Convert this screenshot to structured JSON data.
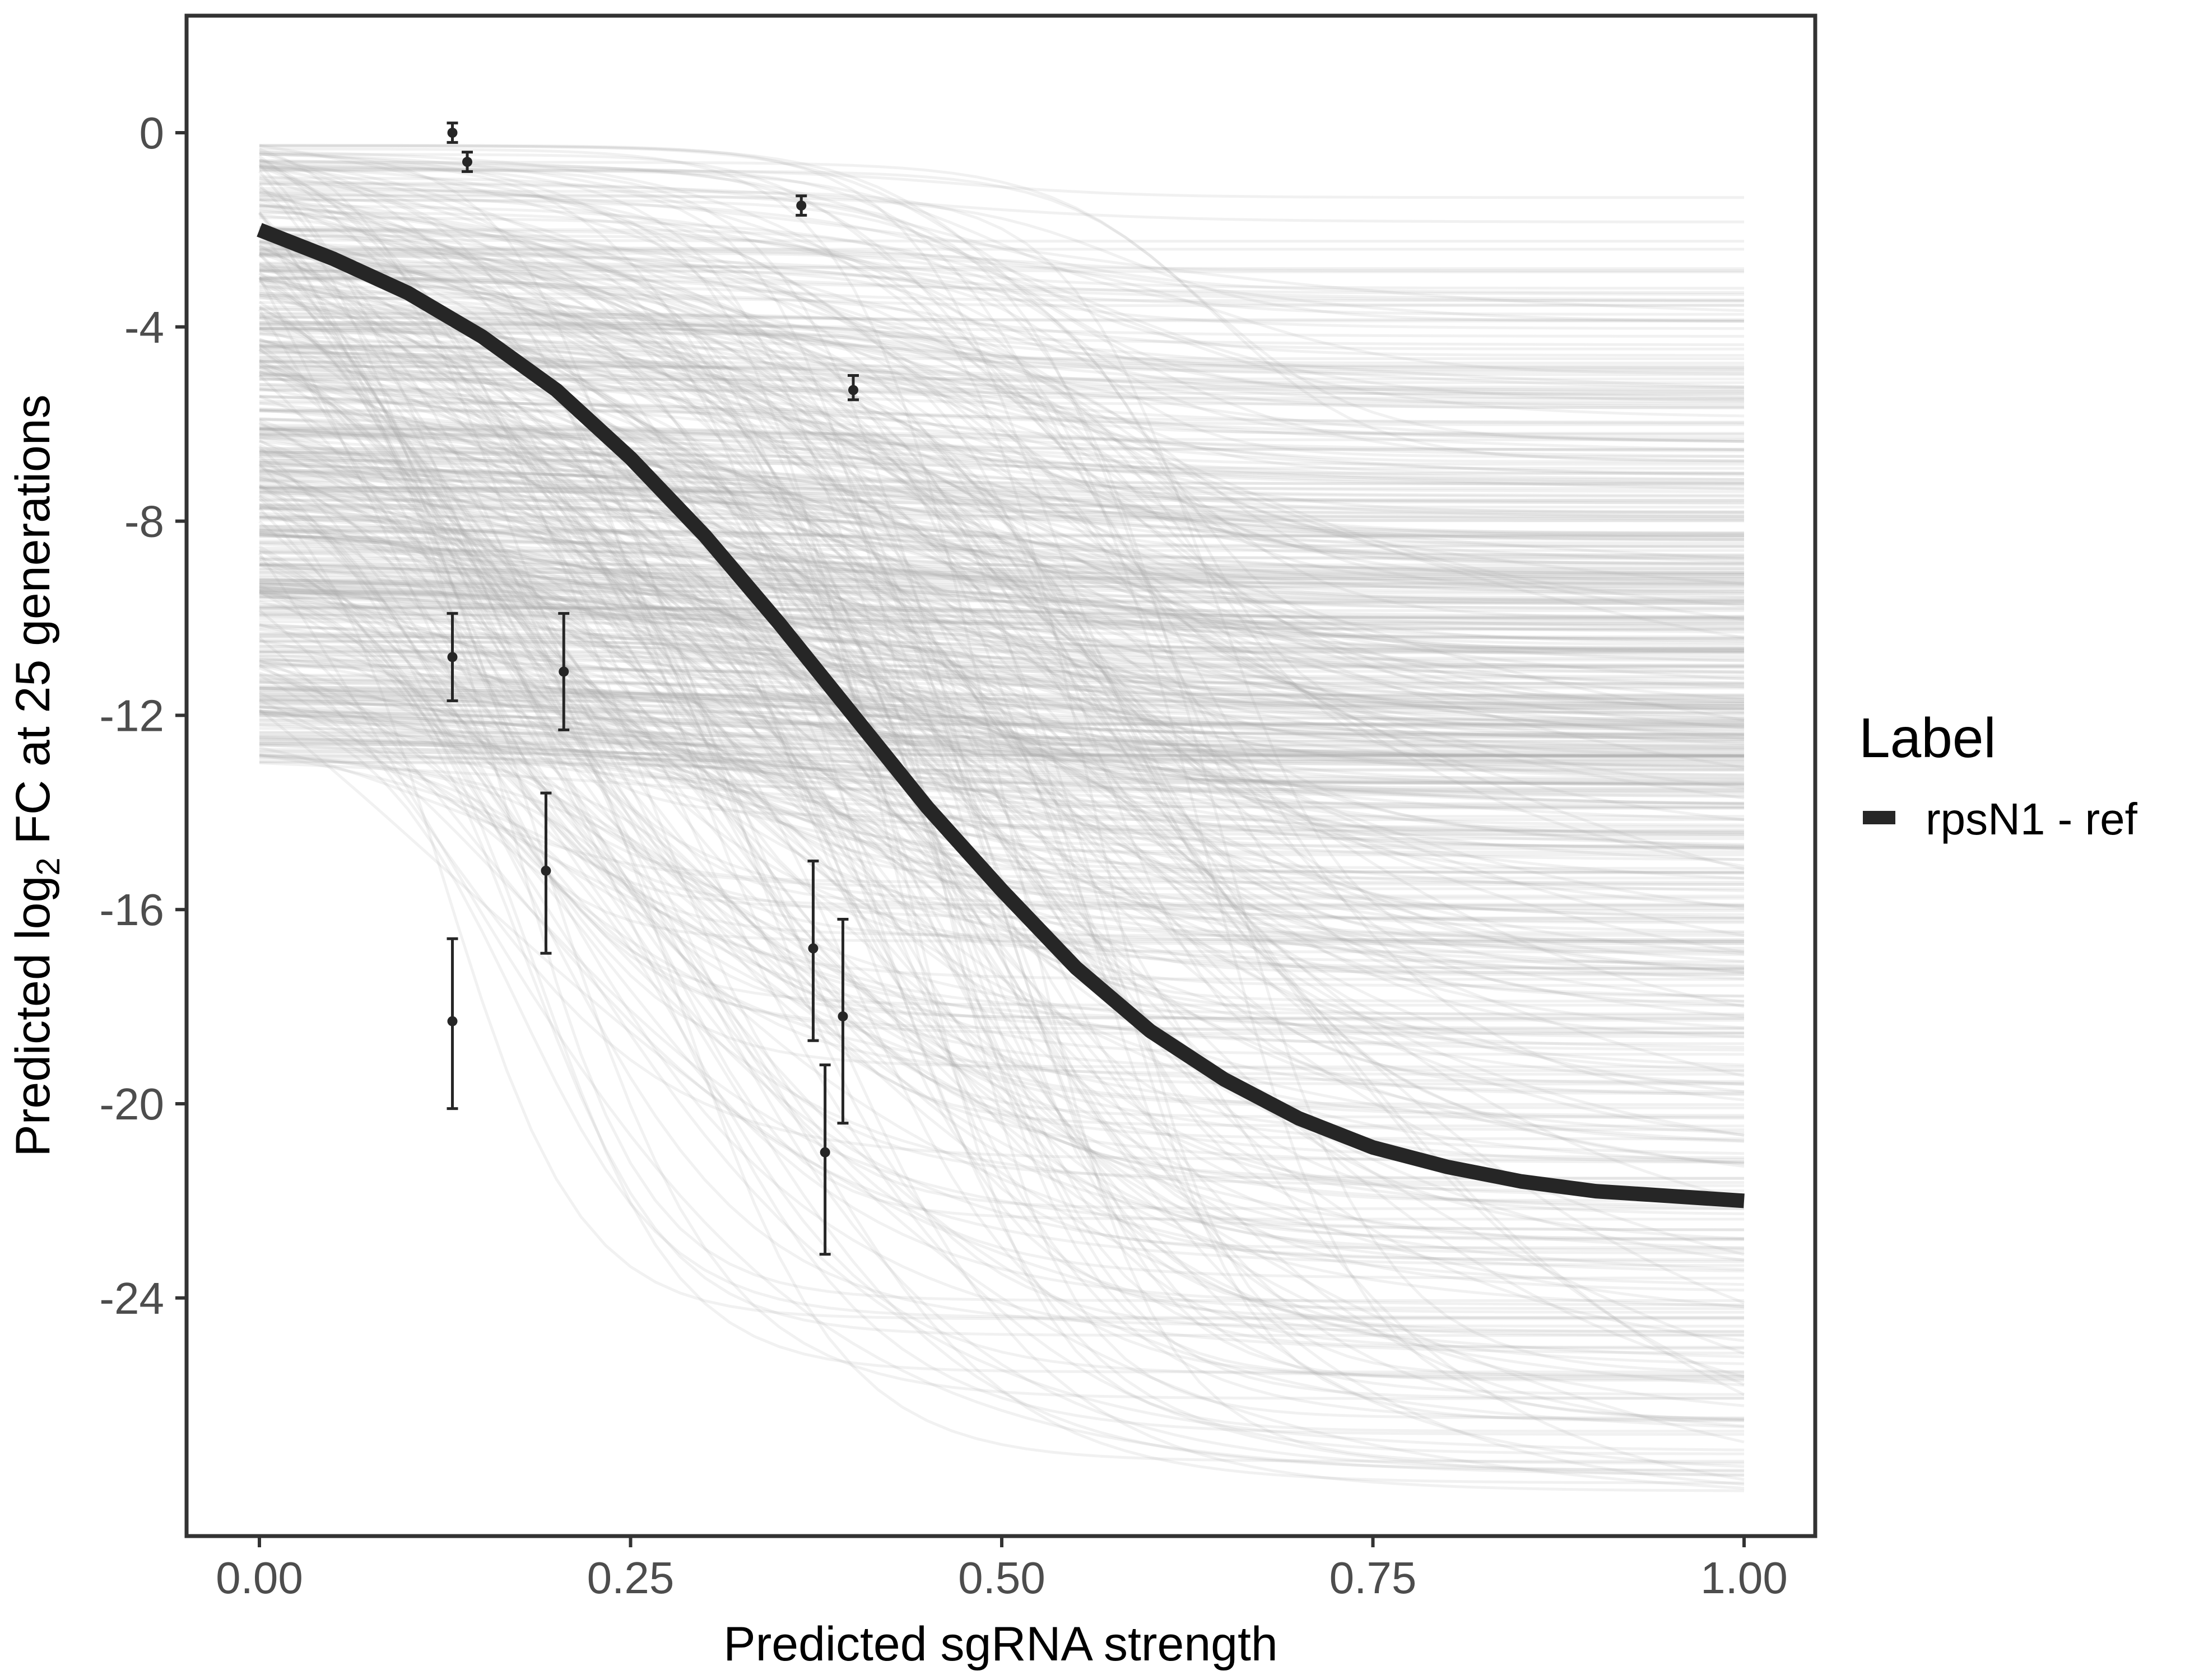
{
  "chart_data": {
    "type": "line",
    "xlabel": "Predicted sgRNA strength",
    "ylabel": {
      "prefix": "Predicted  log",
      "subscript": "2",
      "suffix": " FC at 25 generations"
    },
    "xlim": [
      0,
      1
    ],
    "ylim": [
      -29.9,
      2.5
    ],
    "x_ticks": [
      0,
      0.25,
      0.5,
      0.75,
      1
    ],
    "x_tick_labels": [
      "0.00",
      "0.25",
      "0.50",
      "0.75",
      "1.00"
    ],
    "y_ticks": [
      0,
      -4,
      -8,
      -12,
      -16,
      -20,
      -24
    ],
    "y_tick_labels": [
      "0",
      "-4",
      "-8",
      "-12",
      "-16",
      "-20",
      "-24"
    ],
    "grid": false,
    "legend": {
      "title": "Label",
      "position": "right",
      "entries": [
        {
          "label": "rpsN1 - ref",
          "color": "#262626"
        }
      ]
    },
    "fit_curve": {
      "name": "rpsN1 - ref",
      "color": "#262626",
      "x": [
        0,
        0.05,
        0.1,
        0.15,
        0.2,
        0.25,
        0.3,
        0.35,
        0.4,
        0.45,
        0.5,
        0.55,
        0.6,
        0.65,
        0.7,
        0.75,
        0.8,
        0.85,
        0.9,
        0.95,
        1.0
      ],
      "y": [
        -2.0,
        -2.6,
        -3.3,
        -4.2,
        -5.3,
        -6.7,
        -8.3,
        -10.1,
        -12.0,
        -13.9,
        -15.6,
        -17.2,
        -18.5,
        -19.5,
        -20.3,
        -20.9,
        -21.3,
        -21.6,
        -21.8,
        -21.9,
        -22.0
      ]
    },
    "posterior_band": {
      "color": "#a6a6a6",
      "count": 600,
      "y_at_0_range": [
        -13.0,
        -0.2
      ],
      "y_at_1_range": [
        -28.0,
        -0.3
      ],
      "y_floor": -28.0
    },
    "points": [
      {
        "x": 0.13,
        "y": 0.0,
        "ymin": -0.2,
        "ymax": 0.2
      },
      {
        "x": 0.14,
        "y": -0.6,
        "ymin": -0.8,
        "ymax": -0.4
      },
      {
        "x": 0.365,
        "y": -1.5,
        "ymin": -1.7,
        "ymax": -1.3
      },
      {
        "x": 0.4,
        "y": -5.3,
        "ymin": -5.5,
        "ymax": -5.0
      },
      {
        "x": 0.13,
        "y": -10.8,
        "ymin": -11.7,
        "ymax": -9.9
      },
      {
        "x": 0.205,
        "y": -11.1,
        "ymin": -12.3,
        "ymax": -9.9
      },
      {
        "x": 0.193,
        "y": -15.2,
        "ymin": -16.9,
        "ymax": -13.6
      },
      {
        "x": 0.13,
        "y": -18.3,
        "ymin": -20.1,
        "ymax": -16.6
      },
      {
        "x": 0.373,
        "y": -16.8,
        "ymin": -18.7,
        "ymax": -15.0
      },
      {
        "x": 0.393,
        "y": -18.2,
        "ymin": -20.4,
        "ymax": -16.2
      },
      {
        "x": 0.381,
        "y": -21.0,
        "ymin": -23.1,
        "ymax": -19.2
      }
    ]
  }
}
